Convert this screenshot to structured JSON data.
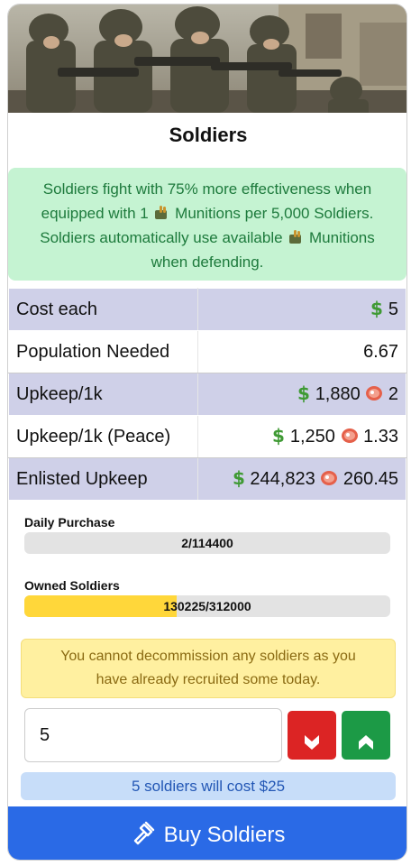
{
  "card": {
    "title": "Soldiers",
    "info_lines": [
      {
        "before": "Soldiers fight with 75% more effectiveness when",
        "after": ""
      },
      {
        "before": "equipped with 1 ",
        "after": " Munitions per 5,000 Soldiers."
      },
      {
        "before": "Soldiers automatically use available ",
        "after": " Munitions"
      },
      {
        "before": "when defending.",
        "after": ""
      }
    ]
  },
  "stats": [
    {
      "label": "Cost each",
      "money": "5",
      "food": ""
    },
    {
      "label": "Population Needed",
      "plain": "6.67"
    },
    {
      "label": "Upkeep/1k",
      "money": "1,880",
      "food": "2"
    },
    {
      "label": "Upkeep/1k (Peace)",
      "money": "1,250",
      "food": "1.33"
    },
    {
      "label": "Enlisted Upkeep",
      "money": "244,823",
      "food": "260.45"
    }
  ],
  "daily_purchase": {
    "label": "Daily Purchase",
    "text": "2/114400",
    "fraction": 1.75e-05
  },
  "owned_soldiers": {
    "label": "Owned Soldiers",
    "text": "130225/312000",
    "fraction": 0.417
  },
  "warning": {
    "line1": "You cannot decommission any soldiers as you",
    "line2": "have already recruited some today."
  },
  "quantity": {
    "value": "5"
  },
  "cost_summary": "5 soldiers will cost $25",
  "buy_button": "Buy Soldiers",
  "colors": {
    "info_bg": "#c5f3d2",
    "info_text": "#1d7a3c",
    "row_alt": "#cfd0e8",
    "progress_fill": "#ffd73a",
    "warn_bg": "#fff0a0",
    "down_btn": "#dc2424",
    "up_btn": "#1c9a46",
    "cost_bg": "#c7ddf9",
    "buy_btn": "#2a6ae6"
  },
  "icons": {
    "money": "dollar-sign-icon",
    "food": "meat-icon",
    "munitions": "munitions-icon",
    "decrease": "chevron-down-icon",
    "increase": "chevron-up-icon",
    "buy": "hammer-icon"
  }
}
